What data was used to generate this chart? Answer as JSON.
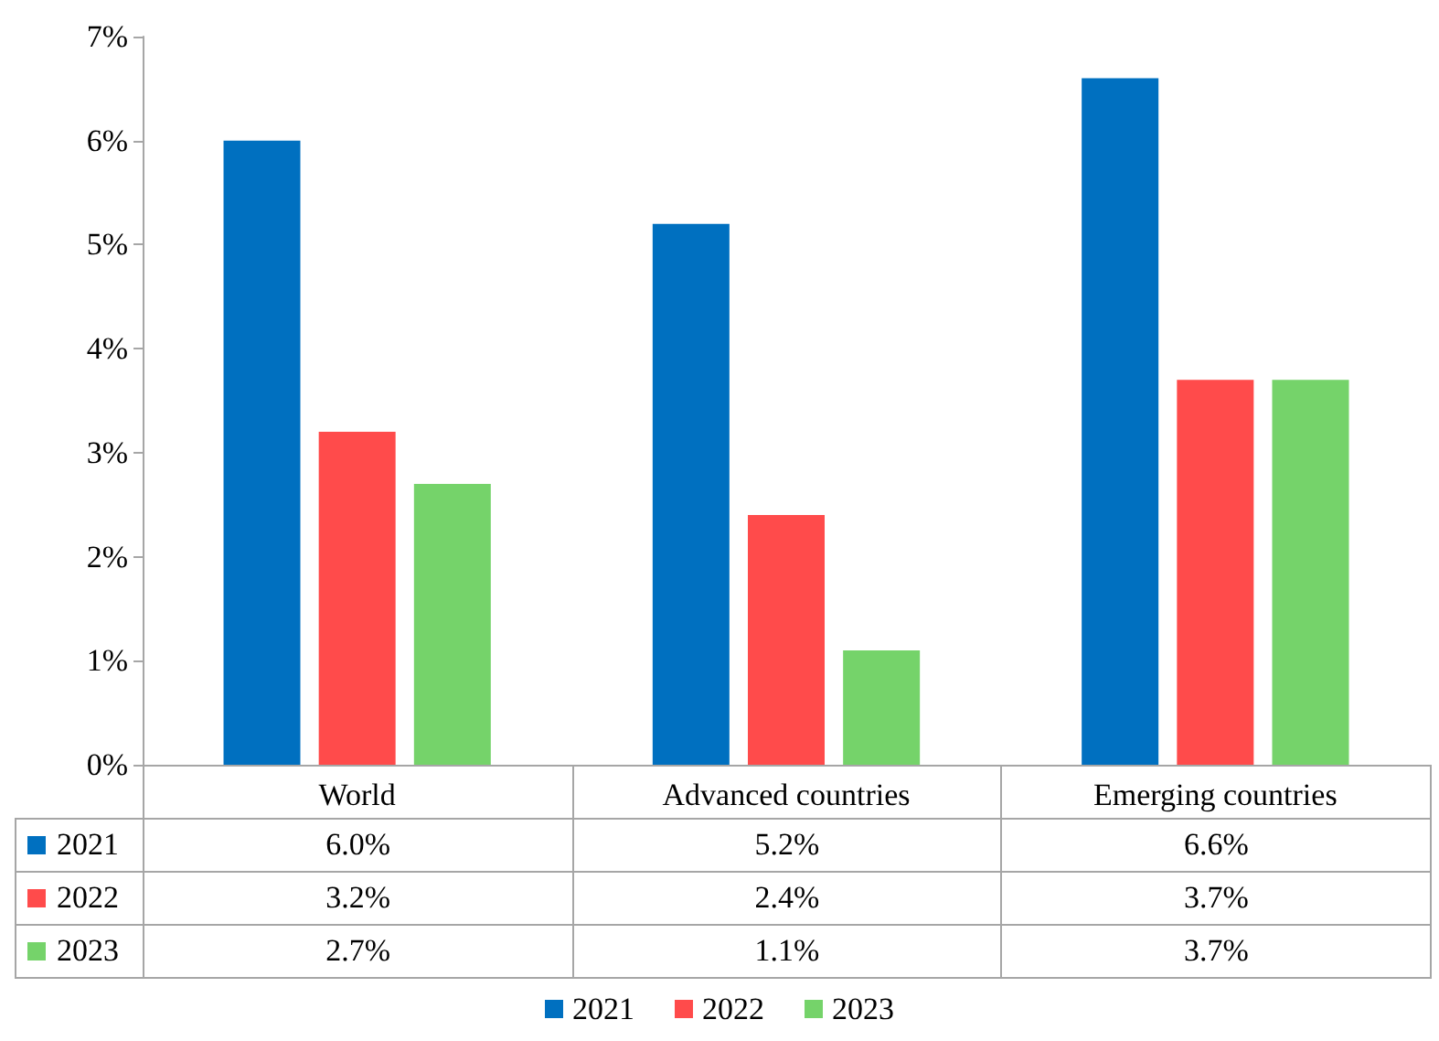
{
  "chart_data": {
    "type": "bar",
    "categories": [
      "World",
      "Advanced countries",
      "Emerging countries"
    ],
    "series": [
      {
        "name": "2021",
        "color": "#0070c0",
        "values": [
          6.0,
          5.2,
          6.6
        ],
        "value_labels": [
          "6.0%",
          "5.2%",
          "6.6%"
        ]
      },
      {
        "name": "2022",
        "color": "#ff4b4b",
        "values": [
          3.2,
          2.4,
          3.7
        ],
        "value_labels": [
          "3.2%",
          "2.4%",
          "3.7%"
        ]
      },
      {
        "name": "2023",
        "color": "#75d36a",
        "values": [
          2.7,
          1.1,
          3.7
        ],
        "value_labels": [
          "2.7%",
          "1.1%",
          "3.7%"
        ]
      }
    ],
    "ylim": [
      0,
      7
    ],
    "yticks": [
      {
        "value": 0,
        "label": "0%"
      },
      {
        "value": 1,
        "label": "1%"
      },
      {
        "value": 2,
        "label": "2%"
      },
      {
        "value": 3,
        "label": "3%"
      },
      {
        "value": 4,
        "label": "4%"
      },
      {
        "value": 5,
        "label": "5%"
      },
      {
        "value": 6,
        "label": "6%"
      },
      {
        "value": 7,
        "label": "7%"
      }
    ],
    "grid": false,
    "legend": "bottom"
  }
}
